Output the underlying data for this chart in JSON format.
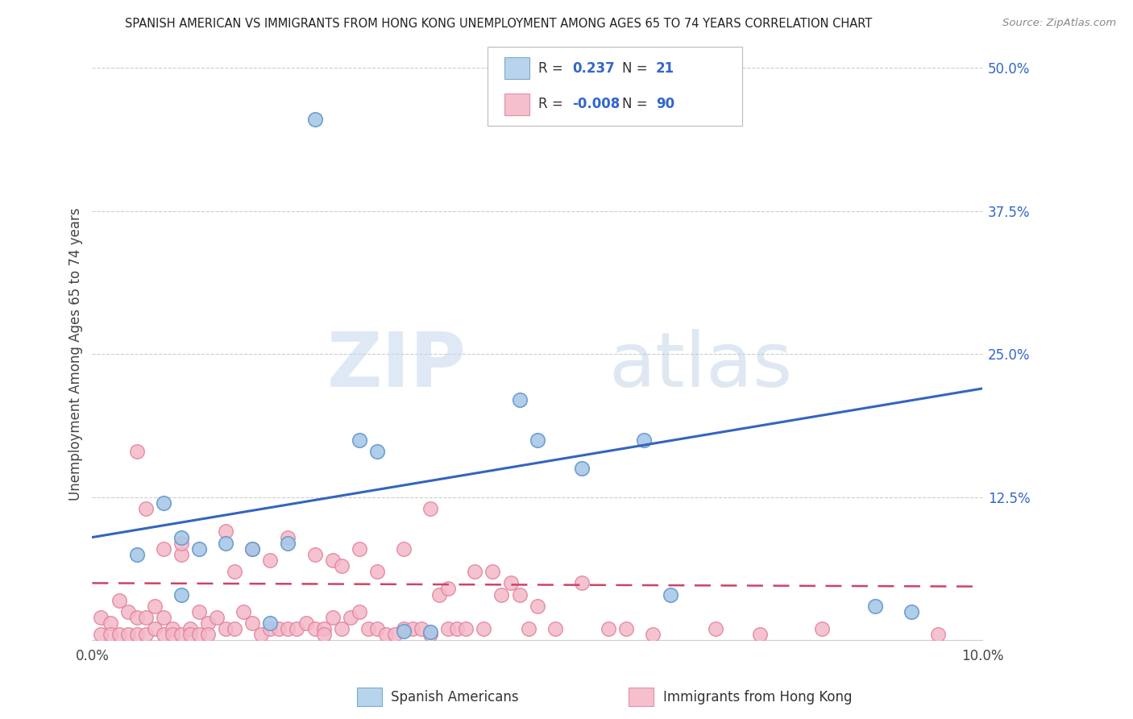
{
  "title": "SPANISH AMERICAN VS IMMIGRANTS FROM HONG KONG UNEMPLOYMENT AMONG AGES 65 TO 74 YEARS CORRELATION CHART",
  "source": "Source: ZipAtlas.com",
  "ylabel": "Unemployment Among Ages 65 to 74 years",
  "xlim": [
    0.0,
    0.1
  ],
  "ylim": [
    0.0,
    0.5
  ],
  "yticks_right": [
    0.5,
    0.375,
    0.25,
    0.125,
    0.0
  ],
  "ytick_labels_right": [
    "50.0%",
    "37.5%",
    "25.0%",
    "12.5%",
    ""
  ],
  "R_blue": 0.237,
  "N_blue": 21,
  "R_pink": -0.008,
  "N_pink": 90,
  "blue_dot_face": "#a8c8e8",
  "blue_dot_edge": "#6699cc",
  "pink_dot_face": "#f4b8c8",
  "pink_dot_edge": "#e08098",
  "trend_blue": "#3366bb",
  "trend_pink": "#cc4466",
  "legend_blue_face": "#b8d4ec",
  "legend_blue_edge": "#7aaad0",
  "legend_pink_face": "#f5bfcc",
  "legend_pink_edge": "#e090a8",
  "watermark_color": "#c8ddf0",
  "blue_x": [
    0.005,
    0.008,
    0.01,
    0.012,
    0.01,
    0.015,
    0.018,
    0.02,
    0.022,
    0.025,
    0.03,
    0.032,
    0.035,
    0.038,
    0.048,
    0.05,
    0.055,
    0.062,
    0.065,
    0.088,
    0.092
  ],
  "blue_y": [
    0.075,
    0.12,
    0.09,
    0.08,
    0.04,
    0.085,
    0.08,
    0.015,
    0.085,
    0.455,
    0.175,
    0.165,
    0.008,
    0.007,
    0.21,
    0.175,
    0.15,
    0.175,
    0.04,
    0.03,
    0.025
  ],
  "pink_x": [
    0.001,
    0.001,
    0.002,
    0.002,
    0.003,
    0.003,
    0.004,
    0.004,
    0.005,
    0.005,
    0.005,
    0.006,
    0.006,
    0.006,
    0.007,
    0.007,
    0.008,
    0.008,
    0.008,
    0.009,
    0.009,
    0.01,
    0.01,
    0.01,
    0.011,
    0.011,
    0.012,
    0.012,
    0.013,
    0.013,
    0.014,
    0.015,
    0.015,
    0.016,
    0.016,
    0.017,
    0.018,
    0.018,
    0.019,
    0.02,
    0.02,
    0.021,
    0.022,
    0.022,
    0.023,
    0.024,
    0.025,
    0.025,
    0.026,
    0.026,
    0.027,
    0.027,
    0.028,
    0.028,
    0.029,
    0.03,
    0.03,
    0.031,
    0.032,
    0.032,
    0.033,
    0.034,
    0.035,
    0.035,
    0.036,
    0.037,
    0.038,
    0.038,
    0.039,
    0.04,
    0.04,
    0.041,
    0.042,
    0.043,
    0.044,
    0.045,
    0.046,
    0.047,
    0.048,
    0.049,
    0.05,
    0.052,
    0.055,
    0.058,
    0.06,
    0.063,
    0.07,
    0.075,
    0.082,
    0.095
  ],
  "pink_y": [
    0.02,
    0.005,
    0.015,
    0.005,
    0.035,
    0.005,
    0.025,
    0.005,
    0.165,
    0.02,
    0.005,
    0.02,
    0.115,
    0.005,
    0.03,
    0.01,
    0.02,
    0.08,
    0.005,
    0.01,
    0.005,
    0.075,
    0.085,
    0.005,
    0.01,
    0.005,
    0.025,
    0.005,
    0.015,
    0.005,
    0.02,
    0.095,
    0.01,
    0.01,
    0.06,
    0.025,
    0.08,
    0.015,
    0.005,
    0.07,
    0.01,
    0.01,
    0.09,
    0.01,
    0.01,
    0.015,
    0.075,
    0.01,
    0.01,
    0.005,
    0.07,
    0.02,
    0.065,
    0.01,
    0.02,
    0.08,
    0.025,
    0.01,
    0.06,
    0.01,
    0.005,
    0.005,
    0.01,
    0.08,
    0.01,
    0.01,
    0.115,
    0.005,
    0.04,
    0.045,
    0.01,
    0.01,
    0.01,
    0.06,
    0.01,
    0.06,
    0.04,
    0.05,
    0.04,
    0.01,
    0.03,
    0.01,
    0.05,
    0.01,
    0.01,
    0.005,
    0.01,
    0.005,
    0.01,
    0.005
  ],
  "blue_trend_x0": 0.0,
  "blue_trend_y0": 0.09,
  "blue_trend_x1": 0.1,
  "blue_trend_y1": 0.22,
  "pink_trend_x0": 0.0,
  "pink_trend_y0": 0.05,
  "pink_trend_x1": 0.1,
  "pink_trend_y1": 0.047
}
